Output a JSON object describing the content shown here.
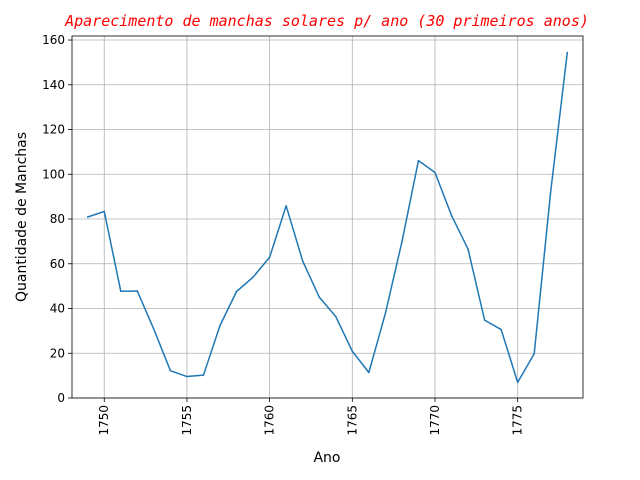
{
  "chart_data": {
    "type": "line",
    "title": "Aparecimento de manchas solares p/ ano (30 primeiros anos)",
    "xlabel": "Ano",
    "ylabel": "Quantidade de Manchas",
    "xlim": [
      1748.05,
      1778.95
    ],
    "ylim": [
      0,
      161.8
    ],
    "xticks": [
      1750,
      1755,
      1760,
      1765,
      1770,
      1775
    ],
    "yticks": [
      0,
      20,
      40,
      60,
      80,
      100,
      120,
      140,
      160
    ],
    "grid": true,
    "legend": "none",
    "color": "#1f77b4",
    "x": [
      1749,
      1750,
      1751,
      1752,
      1753,
      1754,
      1755,
      1756,
      1757,
      1758,
      1759,
      1760,
      1761,
      1762,
      1763,
      1764,
      1765,
      1766,
      1767,
      1768,
      1769,
      1770,
      1771,
      1772,
      1773,
      1774,
      1775,
      1776,
      1777,
      1778
    ],
    "y": [
      80.9,
      83.4,
      47.7,
      47.8,
      30.7,
      12.2,
      9.6,
      10.2,
      32.4,
      47.6,
      54.0,
      62.9,
      85.9,
      61.2,
      45.1,
      36.4,
      20.9,
      11.4,
      37.8,
      69.8,
      106.1,
      100.8,
      81.6,
      66.5,
      34.8,
      30.6,
      7.0,
      19.8,
      92.5,
      154.4
    ]
  }
}
